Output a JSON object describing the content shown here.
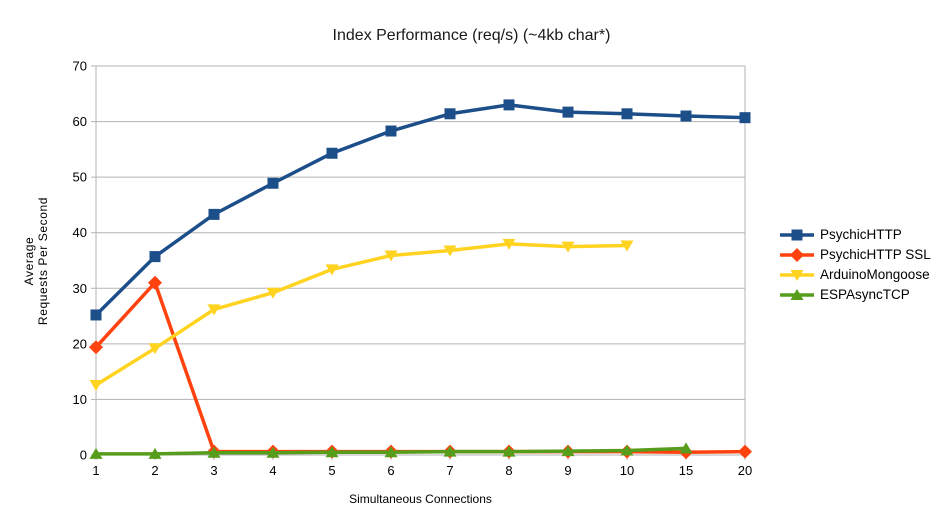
{
  "chart_data": {
    "type": "line",
    "title": "Index Performance (req/s) (~4kb char*)",
    "xlabel": "Simultaneous Connections",
    "ylabel": "Average\nRequests Per Second",
    "categories": [
      "1",
      "2",
      "3",
      "4",
      "5",
      "6",
      "7",
      "8",
      "9",
      "10",
      "15",
      "20"
    ],
    "series": [
      {
        "name": "PsychicHTTP",
        "color": "#1c4e8a",
        "marker": "square",
        "values": [
          25.2,
          35.7,
          43.3,
          48.9,
          54.3,
          58.3,
          61.4,
          63.0,
          61.7,
          61.4,
          61.0,
          60.7
        ]
      },
      {
        "name": "PsychicHTTP SSL",
        "color": "#ff420e",
        "marker": "diamond",
        "values": [
          19.4,
          31.0,
          0.6,
          0.6,
          0.6,
          0.6,
          0.6,
          0.6,
          0.6,
          0.6,
          0.5,
          0.6
        ]
      },
      {
        "name": "ArduinoMongoose",
        "color": "#ffd320",
        "marker": "triangle-down",
        "values": [
          12.6,
          19.2,
          26.2,
          29.2,
          33.4,
          35.9,
          36.8,
          38.0,
          37.5,
          37.7,
          null,
          null
        ]
      },
      {
        "name": "ESPAsyncTCP",
        "color": "#579d1c",
        "marker": "triangle-up",
        "values": [
          0.2,
          0.2,
          0.4,
          0.4,
          0.5,
          0.5,
          0.6,
          0.6,
          0.7,
          0.8,
          1.2,
          null
        ]
      }
    ],
    "ylim": [
      0,
      70
    ],
    "yticks": [
      0,
      10,
      20,
      30,
      40,
      50,
      60,
      70
    ],
    "grid": "horizontal",
    "legend_position": "right",
    "colors": {
      "grid": "#b3b3b3",
      "axis_text": "#000000",
      "background": "#ffffff"
    }
  }
}
